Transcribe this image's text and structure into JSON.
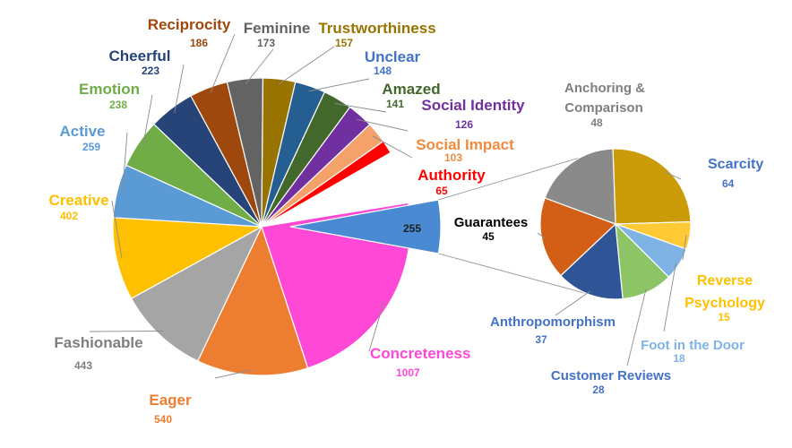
{
  "chart_data": {
    "type": "pie",
    "subtype": "pie-of-pie",
    "main_pie": {
      "slices": [
        {
          "name": "Concreteness",
          "value": 1007,
          "color": "#FF48D6",
          "label_color": "#FF48D6"
        },
        {
          "name": "Eager",
          "value": 540,
          "color": "#ED7D31",
          "label_color": "#ED7D31"
        },
        {
          "name": "Fashionable",
          "value": 443,
          "color": "#A5A5A5",
          "label_color": "#7F7F7F"
        },
        {
          "name": "Creative",
          "value": 402,
          "color": "#FFC000",
          "label_color": "#FFC000"
        },
        {
          "name": "Active",
          "value": 259,
          "color": "#5B9BD5",
          "label_color": "#5B9BD5"
        },
        {
          "name": "Emotion",
          "value": 238,
          "color": "#70AD47",
          "label_color": "#70AD47"
        },
        {
          "name": "Cheerful",
          "value": 223,
          "color": "#264478",
          "label_color": "#264478"
        },
        {
          "name": "Reciprocity",
          "value": 186,
          "color": "#9E480E",
          "label_color": "#9E480E"
        },
        {
          "name": "Feminine",
          "value": 173,
          "color": "#636363",
          "label_color": "#636363"
        },
        {
          "name": "Trustworthiness",
          "value": 157,
          "color": "#997300",
          "label_color": "#997300"
        },
        {
          "name": "Unclear",
          "value": 148,
          "color": "#255E91",
          "label_color": "#4472C4"
        },
        {
          "name": "Amazed",
          "value": 141,
          "color": "#43682B",
          "label_color": "#43682B"
        },
        {
          "name": "Social Identity",
          "value": 126,
          "color": "#7030A0",
          "label_color": "#7030A0"
        },
        {
          "name": "Social Impact",
          "value": 103,
          "color": "#F4A16A",
          "label_color": "#F08A3E"
        },
        {
          "name": "Authority",
          "value": 65,
          "color": "#FF0000",
          "label_color": "#FF0000"
        }
      ],
      "other_slice": {
        "value": 255,
        "color": "#4A8AD2",
        "label": "255"
      }
    },
    "secondary_pie": {
      "slices": [
        {
          "name": "Scarcity",
          "value": 64,
          "color": "#CC9B0A",
          "label_color": "#4472C4"
        },
        {
          "name": "Reverse Psychology",
          "value": 15,
          "color": "#FFCA35",
          "label_color": "#FFC000"
        },
        {
          "name": "Foot in the Door",
          "value": 18,
          "color": "#7FB2E5",
          "label_color": "#7FB2E5"
        },
        {
          "name": "Customer Reviews",
          "value": 28,
          "color": "#8CC466",
          "label_color": "#4472C4"
        },
        {
          "name": "Anthropomorphism",
          "value": 37,
          "color": "#2F5597",
          "label_color": "#4472C4"
        },
        {
          "name": "Guarantees",
          "value": 45,
          "color": "#D35F16",
          "label_color": "#000000"
        },
        {
          "name": "Anchoring & Comparison",
          "value": 48,
          "color": "#8A8A8A",
          "label_color": "#7F7F7F"
        }
      ]
    },
    "title": "",
    "legend": "none",
    "data_labels": "category name and value"
  }
}
